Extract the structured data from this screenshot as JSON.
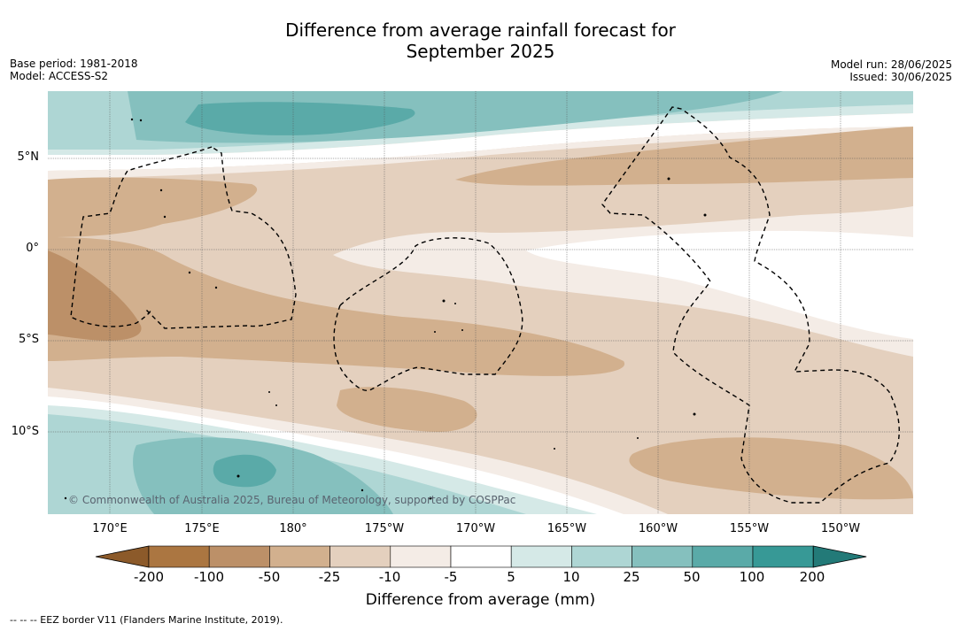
{
  "title_line1": "Difference from average rainfall forecast for",
  "title_line2": "September 2025",
  "base_period": "Base period: 1981-2018",
  "model": "Model: ACCESS-S2",
  "model_run": "Model run: 28/06/2025",
  "issued": "Issued: 30/06/2025",
  "copyright": "© Commonwealth of Australia 2025, Bureau of Meteorology, supported by COSPPac",
  "lon_labels": [
    "170°E",
    "175°E",
    "180°",
    "175°W",
    "170°W",
    "165°W",
    "160°W",
    "155°W",
    "150°W"
  ],
  "lat_labels": [
    "5°N",
    "0°",
    "5°S",
    "10°S"
  ],
  "colorbar": {
    "ticks": [
      "-200",
      "-100",
      "-50",
      "-25",
      "-10",
      "-5",
      "5",
      "10",
      "25",
      "50",
      "100",
      "200"
    ],
    "colors": [
      "#8c5a2a",
      "#ab7641",
      "#bc9068",
      "#d2b08e",
      "#e4d0be",
      "#f4ece6",
      "#ffffff",
      "#d5e9e7",
      "#aed6d4",
      "#85c0be",
      "#5aaaa8",
      "#379996",
      "#237a78"
    ],
    "label": "Difference from average (mm)"
  },
  "eez_note": "--  --  -- EEZ border V11 (Flanders Marine Institute, 2019)."
}
